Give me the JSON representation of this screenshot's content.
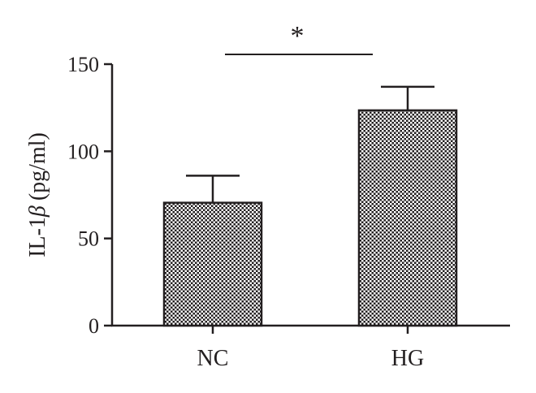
{
  "chart_data": {
    "type": "bar",
    "categories": [
      "NC",
      "HG"
    ],
    "values": [
      70.5,
      123.5
    ],
    "errors": [
      15.5,
      13.5
    ],
    "ylabel_prefix": "IL-1",
    "ylabel_symbol": "β",
    "ylabel_unit": "(pg/ml)",
    "ylim": [
      0,
      150
    ],
    "yticks": [
      "0",
      "50",
      "100",
      "150"
    ],
    "significance": {
      "between": [
        "NC",
        "HG"
      ],
      "label": "*"
    },
    "grid": false,
    "colors": {
      "bar_fill": "#231f20",
      "bar_pattern": "#ffffff",
      "axis": "#231f20"
    }
  }
}
